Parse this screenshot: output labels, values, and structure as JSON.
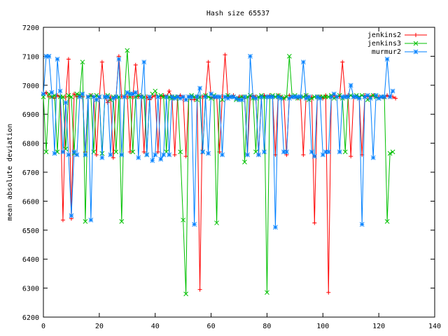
{
  "chart_data": {
    "type": "line",
    "title": "Hash size 65537",
    "xlabel": "",
    "ylabel": "mean absolute deviation",
    "xlim": [
      0,
      140
    ],
    "ylim": [
      6200,
      7200
    ],
    "x_ticks": [
      0,
      20,
      40,
      60,
      80,
      100,
      120,
      140
    ],
    "y_ticks": [
      6200,
      6300,
      6400,
      6500,
      6600,
      6700,
      6800,
      6900,
      7000,
      7100,
      7200
    ],
    "grid": false,
    "legend_position": "top-right",
    "series": [
      {
        "name": "jenkins2",
        "color": "#ff0000",
        "marker": "plus",
        "values": [
          6970,
          6975,
          6960,
          6960,
          6955,
          6965,
          6960,
          6535,
          6960,
          7090,
          6540,
          6970,
          6960,
          6965,
          6960,
          6770,
          6960,
          6965,
          6960,
          6760,
          6955,
          7080,
          6960,
          6940,
          6960,
          6750,
          6960,
          7100,
          6960,
          6960,
          6960,
          6770,
          6960,
          7070,
          6960,
          6965,
          6770,
          6960,
          6950,
          6960,
          6965,
          6770,
          6960,
          6965,
          6960,
          6980,
          6960,
          6760,
          6960,
          6965,
          6960,
          6755,
          6960,
          6950,
          6950,
          6960,
          6295,
          6960,
          6965,
          7080,
          6960,
          6955,
          6960,
          6770,
          6960,
          7105,
          6960,
          6960,
          6965,
          6955,
          6960,
          6960,
          6955,
          6760,
          6960,
          6965,
          6960,
          6760,
          6960,
          6965,
          6960,
          6965,
          6960,
          6760,
          6965,
          6960,
          6955,
          6760,
          6965,
          6960,
          6960,
          6955,
          6960,
          6760,
          6965,
          6960,
          6960,
          6525,
          6960,
          6960,
          6955,
          6965,
          6285,
          6960,
          6965,
          6960,
          6960,
          7080,
          6960,
          6965,
          6755,
          6960,
          6960,
          6955,
          6760,
          6965,
          6960,
          6960,
          6965,
          6960,
          6960,
          6960,
          6955,
          6965,
          6960,
          6960,
          6955
        ]
      },
      {
        "name": "jenkins3",
        "color": "#00c000",
        "marker": "cross",
        "values": [
          6960,
          6770,
          6970,
          6960,
          6965,
          6770,
          6960,
          6960,
          6780,
          6965,
          6960,
          6765,
          6970,
          6965,
          7080,
          6530,
          6960,
          6965,
          6770,
          6965,
          6960,
          6765,
          6960,
          6965,
          6950,
          6960,
          6770,
          6960,
          6530,
          6960,
          7120,
          6960,
          6770,
          6960,
          6965,
          6960,
          6960,
          6760,
          6960,
          6970,
          6980,
          6960,
          6965,
          6960,
          6770,
          6960,
          6955,
          6960,
          6960,
          6770,
          6535,
          6280,
          6960,
          6965,
          6960,
          6950,
          6960,
          6770,
          6965,
          6960,
          6955,
          6965,
          6525,
          6960,
          6950,
          6960,
          6965,
          6960,
          6960,
          6950,
          6955,
          6960,
          6735,
          6960,
          6965,
          6955,
          6770,
          6960,
          6965,
          6960,
          6285,
          6960,
          6965,
          6960,
          6965,
          6960,
          6955,
          6960,
          7100,
          6960,
          6965,
          6955,
          6960,
          6960,
          6965,
          6950,
          6955,
          6960,
          6960,
          6960,
          6960,
          6960,
          6960,
          6965,
          6955,
          6960,
          6965,
          6955,
          6770,
          6960,
          6965,
          6960,
          6965,
          6960,
          6965,
          6960,
          6950,
          6960,
          6965,
          6960,
          6955,
          6960,
          6960,
          6530,
          6765,
          6770
        ]
      },
      {
        "name": "murmur2",
        "color": "#0080ff",
        "marker": "star",
        "values": [
          6970,
          7100,
          7100,
          6975,
          6765,
          7090,
          6980,
          6770,
          6940,
          6760,
          6550,
          6770,
          6760,
          6960,
          6970,
          6760,
          6960,
          6535,
          6960,
          6950,
          6960,
          6750,
          6960,
          6960,
          6760,
          6955,
          6960,
          7090,
          6760,
          6960,
          6975,
          6970,
          6970,
          6975,
          6750,
          6960,
          7080,
          6760,
          6960,
          6740,
          6760,
          6960,
          6745,
          6760,
          6960,
          6760,
          6960,
          6955,
          6960,
          6955,
          6960,
          6950,
          6960,
          6960,
          6520,
          6960,
          6990,
          6770,
          6960,
          6765,
          6970,
          6960,
          6960,
          6960,
          6760,
          6960,
          6955,
          6960,
          6960,
          6955,
          6950,
          6950,
          6960,
          6760,
          7100,
          6960,
          6955,
          6760,
          6960,
          6770,
          6960,
          6960,
          6960,
          6510,
          6960,
          6955,
          6770,
          6770,
          6955,
          6960,
          6960,
          6960,
          6960,
          7080,
          6955,
          6960,
          6770,
          6755,
          6960,
          6955,
          6760,
          6770,
          6770,
          6960,
          6970,
          6960,
          6770,
          6960,
          6960,
          6960,
          7000,
          6960,
          6960,
          6955,
          6520,
          6960,
          6965,
          6955,
          6750,
          6965,
          6955,
          6960,
          6960,
          7090,
          6960,
          6980
        ]
      }
    ]
  }
}
